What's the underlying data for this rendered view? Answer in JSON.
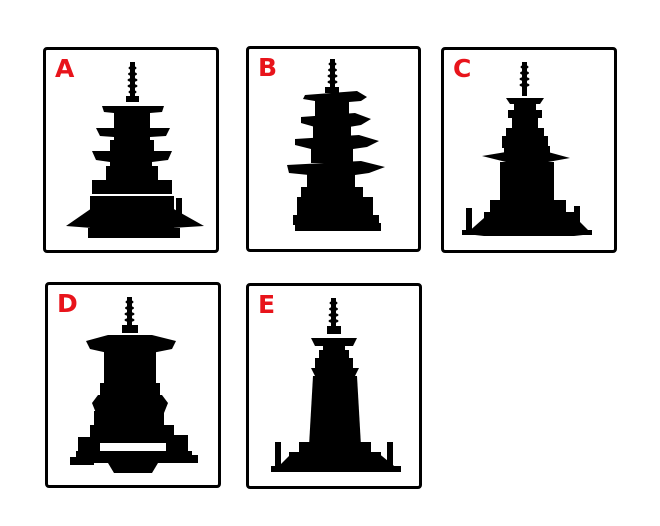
{
  "accent_color": "#e8141b",
  "silhouette_color": "#000000",
  "panels": [
    {
      "label": "A",
      "icon": "pagoda-silhouette-icon"
    },
    {
      "label": "B",
      "icon": "pagoda-silhouette-icon"
    },
    {
      "label": "C",
      "icon": "pagoda-silhouette-icon"
    },
    {
      "label": "D",
      "icon": "pagoda-silhouette-icon"
    },
    {
      "label": "E",
      "icon": "pagoda-silhouette-icon"
    }
  ]
}
